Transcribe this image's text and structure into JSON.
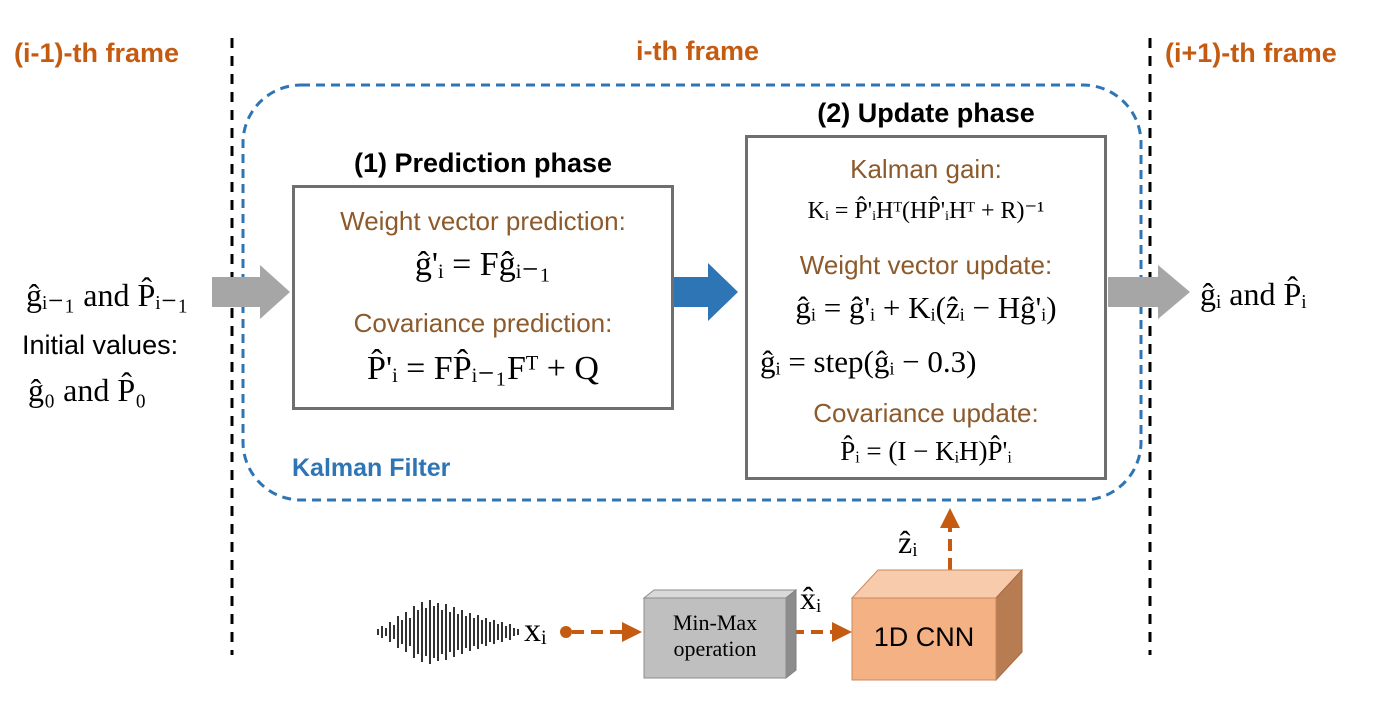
{
  "frames": {
    "prev": "(i-1)-th frame",
    "curr": "i-th frame",
    "next": "(i+1)-th frame"
  },
  "kalman_filter_label": "Kalman Filter",
  "prediction": {
    "title": "(1) Prediction phase",
    "weight_label": "Weight vector prediction:",
    "weight_eq": "ĝ'ᵢ = Fĝᵢ₋₁",
    "cov_label": "Covariance prediction:",
    "cov_eq": "P̂'ᵢ = FP̂ᵢ₋₁Fᵀ + Q"
  },
  "update": {
    "title": "(2) Update phase",
    "gain_label": "Kalman gain:",
    "gain_eq": "Kᵢ = P̂'ᵢHᵀ(HP̂'ᵢHᵀ + R)⁻¹",
    "weight_label": "Weight vector update:",
    "weight_eq": "ĝᵢ = ĝ'ᵢ + Kᵢ(ẑᵢ − Hĝ'ᵢ)",
    "step_eq": "ĝᵢ = step(ĝᵢ − 0.3)",
    "cov_label": "Covariance update:",
    "cov_eq": "P̂ᵢ = (I − KᵢH)P̂'ᵢ"
  },
  "left": {
    "input": "ĝᵢ₋₁ and P̂ᵢ₋₁",
    "initial_label": "Initial values:",
    "initial_eq": "ĝ₀ and P̂₀"
  },
  "right": {
    "output": "ĝᵢ and P̂ᵢ"
  },
  "pipeline": {
    "signal": "xᵢ",
    "minmax_line1": "Min-Max",
    "minmax_line2": "operation",
    "normalized": "x̂ᵢ",
    "cnn": "1D CNN",
    "cnn_out": "ẑᵢ"
  },
  "colors": {
    "frame_orange": "#c55a11",
    "kf_blue": "#2e75b6",
    "label_brown": "#8c5a2b",
    "box_gray": "#6f6f6f",
    "arrow_gray": "#a6a6a6",
    "arrow_blue": "#2e75b6",
    "cnn_fill": "#f4b183",
    "minmax_fill": "#bfbfbf"
  }
}
